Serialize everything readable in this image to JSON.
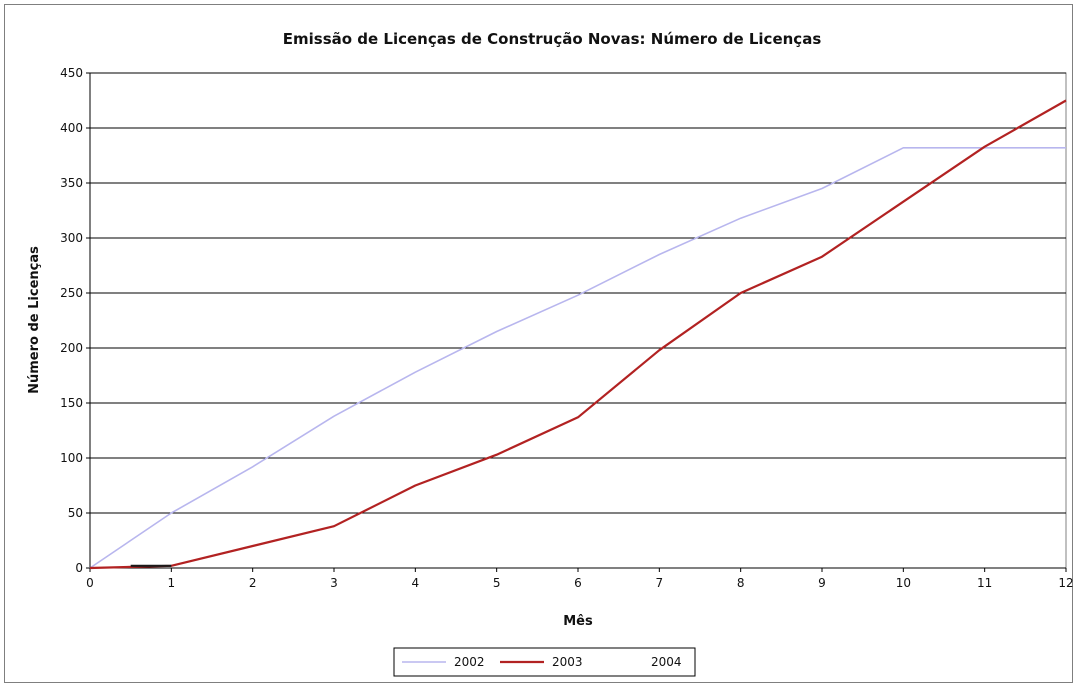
{
  "chart_data": {
    "type": "line",
    "title": "Emissão de Licenças de Construção Novas: Número de Licenças",
    "xlabel": "Mês",
    "ylabel": "Número de Licenças",
    "xlim": [
      0,
      12
    ],
    "ylim": [
      0,
      450
    ],
    "x_ticks": [
      "0",
      "1",
      "2",
      "3",
      "4",
      "5",
      "6",
      "7",
      "8",
      "9",
      "10",
      "11",
      "12"
    ],
    "y_ticks": [
      "0",
      "50",
      "100",
      "150",
      "200",
      "250",
      "300",
      "350",
      "400",
      "450"
    ],
    "grid": "horizontal",
    "legend_position": "bottom",
    "series": [
      {
        "name": "2002",
        "color": "#b8b6ee",
        "x": [
          0,
          1,
          2,
          3,
          4,
          5,
          6,
          7,
          8,
          9,
          10,
          11,
          12
        ],
        "y": [
          0,
          50,
          92,
          138,
          178,
          215,
          248,
          285,
          318,
          345,
          382,
          382,
          382
        ]
      },
      {
        "name": "2003",
        "color": "#b22222",
        "x": [
          0,
          1,
          2,
          3,
          4,
          5,
          6,
          7,
          8,
          9,
          10,
          11,
          12
        ],
        "y": [
          0,
          2,
          20,
          38,
          75,
          103,
          137,
          198,
          250,
          283,
          333,
          383,
          425
        ]
      },
      {
        "name": "2004",
        "color": "#1a1a1a",
        "x": [
          0.5,
          1
        ],
        "y": [
          2,
          2
        ]
      }
    ]
  }
}
